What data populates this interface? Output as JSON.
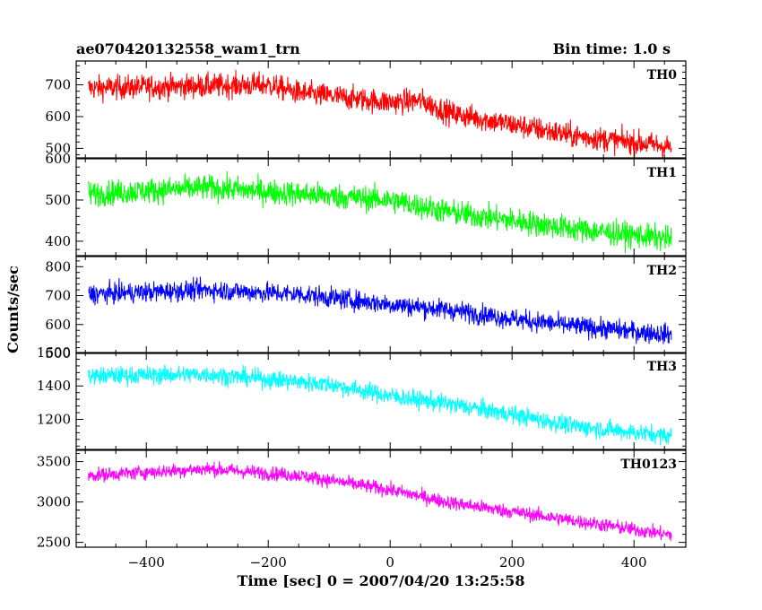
{
  "chart_data": {
    "type": "line",
    "title": "ae070420132558_wam1_trn",
    "subtitle": "Bin time: 1.0 s",
    "xlabel": "Time [sec] 0 = 2007/04/20 13:25:58",
    "ylabel": "Counts/sec",
    "xlim": [
      -515,
      485
    ],
    "x_range": [
      -495,
      462
    ],
    "x_ticks": [
      -400,
      -200,
      0,
      200,
      400
    ],
    "x_tick_labels": [
      "−400",
      "−200",
      "0",
      "200",
      "400"
    ],
    "grid": false,
    "panels": [
      {
        "name": "TH0",
        "color": "#ff0000",
        "ylim": [
          470,
          775
        ],
        "y_ticks": [
          500,
          600,
          700
        ],
        "y_tick_labels": [
          "500",
          "600",
          "700"
        ],
        "trend": [
          [
            -495,
            690
          ],
          [
            -200,
            700
          ],
          [
            -150,
            675
          ],
          [
            0,
            645
          ],
          [
            50,
            650
          ],
          [
            100,
            610
          ],
          [
            200,
            575
          ],
          [
            300,
            540
          ],
          [
            462,
            505
          ]
        ],
        "noise": 35
      },
      {
        "name": "TH1",
        "color": "#00ff00",
        "ylim": [
          365,
          600
        ],
        "y_ticks": [
          400,
          500,
          600
        ],
        "y_tick_labels": [
          "400",
          "500",
          "600"
        ],
        "trend": [
          [
            -495,
            515
          ],
          [
            -300,
            530
          ],
          [
            -150,
            515
          ],
          [
            0,
            500
          ],
          [
            100,
            470
          ],
          [
            200,
            450
          ],
          [
            300,
            430
          ],
          [
            462,
            405
          ]
        ],
        "noise": 28
      },
      {
        "name": "TH2",
        "color": "#0000ff",
        "ylim": [
          500,
          835
        ],
        "y_ticks": [
          500,
          600,
          700,
          800
        ],
        "y_tick_labels": [
          "500",
          "600",
          "700",
          "800"
        ],
        "trend": [
          [
            -495,
            705
          ],
          [
            -300,
            720
          ],
          [
            -150,
            705
          ],
          [
            0,
            670
          ],
          [
            100,
            650
          ],
          [
            200,
            620
          ],
          [
            300,
            595
          ],
          [
            462,
            565
          ]
        ],
        "noise": 32
      },
      {
        "name": "TH3",
        "color": "#00ffff",
        "ylim": [
          1020,
          1600
        ],
        "y_ticks": [
          1200,
          1400,
          1600
        ],
        "y_tick_labels": [
          "1200",
          "1400",
          "1600"
        ],
        "trend": [
          [
            -495,
            1460
          ],
          [
            -300,
            1470
          ],
          [
            -100,
            1410
          ],
          [
            0,
            1340
          ],
          [
            100,
            1290
          ],
          [
            200,
            1230
          ],
          [
            300,
            1160
          ],
          [
            462,
            1100
          ]
        ],
        "noise": 50
      },
      {
        "name": "TH0123",
        "color": "#ff00ff",
        "ylim": [
          2440,
          3640
        ],
        "y_ticks": [
          2500,
          3000,
          3500
        ],
        "y_tick_labels": [
          "2500",
          "3000",
          "3500"
        ],
        "trend": [
          [
            -495,
            3330
          ],
          [
            -300,
            3410
          ],
          [
            -150,
            3330
          ],
          [
            0,
            3150
          ],
          [
            100,
            2990
          ],
          [
            200,
            2880
          ],
          [
            300,
            2770
          ],
          [
            462,
            2590
          ]
        ],
        "noise": 80
      }
    ]
  }
}
